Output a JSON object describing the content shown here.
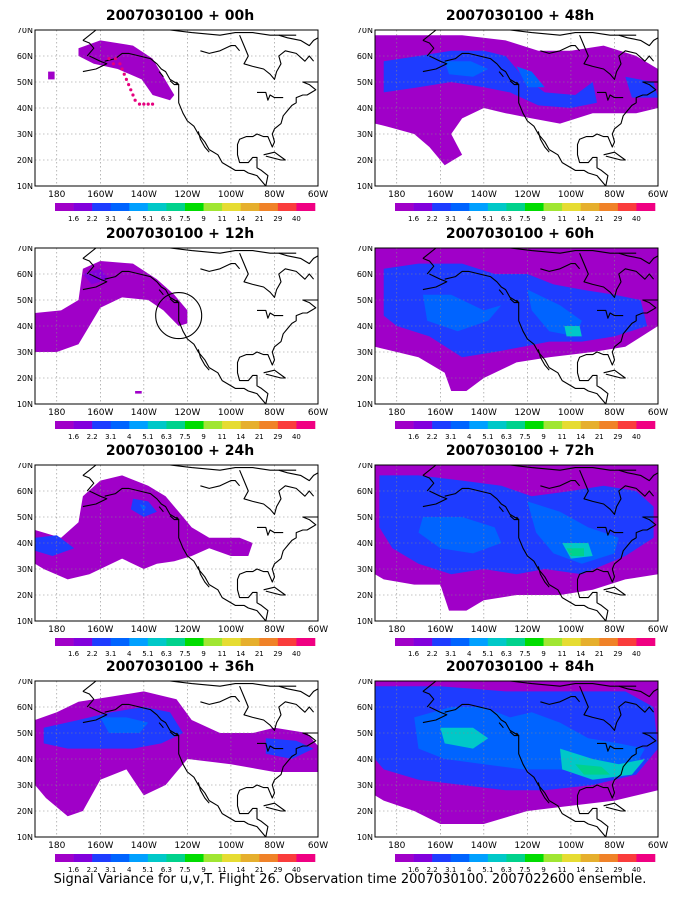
{
  "panels": [
    {
      "title": "2007030100 + 00h",
      "id": "f00"
    },
    {
      "title": "2007030100 + 12h",
      "id": "f12"
    },
    {
      "title": "2007030100 + 24h",
      "id": "f24"
    },
    {
      "title": "2007030100 + 36h",
      "id": "f36"
    },
    {
      "title": "2007030100 + 48h",
      "id": "f48"
    },
    {
      "title": "2007030100 + 60h",
      "id": "f60"
    },
    {
      "title": "2007030100 + 72h",
      "id": "f72"
    },
    {
      "title": "2007030100 + 84h",
      "id": "f84"
    }
  ],
  "lat_labels": [
    "70N",
    "60N",
    "50N",
    "40N",
    "30N",
    "20N",
    "10N"
  ],
  "lon_labels": [
    "180",
    "160W",
    "140W",
    "120W",
    "100W",
    "80W",
    "60W"
  ],
  "colorbar": {
    "levels": [
      "1.6",
      "2.2",
      "3.1",
      "4",
      "5.1",
      "6.3",
      "7.5",
      "9",
      "11",
      "14",
      "21",
      "29",
      "40"
    ],
    "colors": [
      "#a000c8",
      "#8200dc",
      "#1e3cff",
      "#0064ff",
      "#00a0ff",
      "#00c8c8",
      "#00d28c",
      "#00dc00",
      "#a0e632",
      "#e6dc32",
      "#e6af2d",
      "#f08228",
      "#fa3c3c",
      "#f00082"
    ]
  },
  "caption": "Signal Variance for u,v,T. Flight 26. Observation time 2007030100. 2007022600 ensemble."
}
